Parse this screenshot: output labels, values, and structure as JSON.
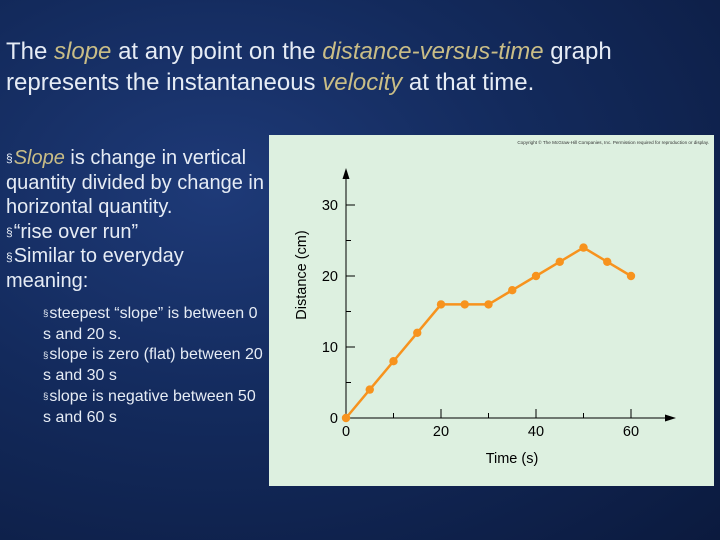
{
  "title": {
    "p1": "The ",
    "slope": "slope",
    "p2": " at any point on the ",
    "dvt": "distance-versus-time",
    "p3": " graph represents the instantaneous ",
    "velocity": "velocity",
    "p4": " at that time."
  },
  "bullet_marker": "§",
  "bullets": [
    {
      "pre": "",
      "hl": "Slope",
      "rest": " is change in vertical quantity divided by change in horizontal quantity."
    },
    {
      "pre": "“rise over run”",
      "hl": "",
      "rest": ""
    },
    {
      "pre": "Similar to everyday meaning:",
      "hl": "",
      "rest": ""
    }
  ],
  "sub_bullets": [
    "steepest “slope” is between 0 s and 20 s.",
    "slope is zero (flat) between 20 s and 30 s",
    "slope is negative between 50 s and 60 s"
  ],
  "colors": {
    "accent": "#c9bd86",
    "text": "#e6ecf5",
    "line": "#f7931e",
    "plot_bg": "#ddf0e0"
  },
  "chart_data": {
    "type": "line",
    "copyright": "Copyright © The McGraw-Hill Companies, Inc. Permission required for reproduction or display.",
    "xlabel": "Time (s)",
    "ylabel": "Distance (cm)",
    "xticks": [
      0,
      20,
      40,
      60
    ],
    "yticks": [
      0,
      10,
      20,
      30
    ],
    "xlim": [
      0,
      60
    ],
    "ylim": [
      0,
      30
    ],
    "x": [
      0,
      5,
      10,
      15,
      20,
      25,
      30,
      35,
      40,
      45,
      50,
      55,
      60
    ],
    "y": [
      0,
      4,
      8,
      12,
      16,
      16,
      16,
      18,
      20,
      22,
      24,
      22,
      20
    ]
  }
}
